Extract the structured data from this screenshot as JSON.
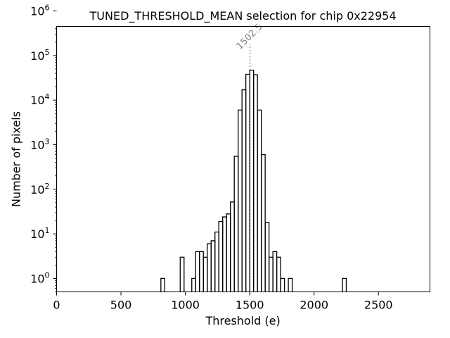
{
  "chart_data": {
    "type": "histogram",
    "title": "TUNED_THRESHOLD_MEAN selection for chip 0x22954",
    "xlabel": "Threshold (e)",
    "ylabel": "Number of pixels",
    "xlim": [
      0,
      2900
    ],
    "ylim": [
      0.5,
      450000
    ],
    "yscale": "log",
    "x_ticks": [
      0,
      500,
      1000,
      1500,
      2000,
      2500
    ],
    "x_tick_labels": [
      "0",
      "500",
      "1000",
      "1500",
      "2000",
      "2500"
    ],
    "y_ticks": [
      1,
      10,
      100,
      1000,
      10000,
      100000,
      1000000
    ],
    "y_tick_base": "10",
    "y_tick_exponents": [
      "0",
      "1",
      "2",
      "3",
      "4",
      "5",
      "6"
    ],
    "grid": false,
    "bins": [
      {
        "x0": 810,
        "x1": 840,
        "count": 1
      },
      {
        "x0": 960,
        "x1": 990,
        "count": 3
      },
      {
        "x0": 1050,
        "x1": 1080,
        "count": 1
      },
      {
        "x0": 1080,
        "x1": 1110,
        "count": 4
      },
      {
        "x0": 1110,
        "x1": 1140,
        "count": 4
      },
      {
        "x0": 1140,
        "x1": 1170,
        "count": 3
      },
      {
        "x0": 1170,
        "x1": 1200,
        "count": 6
      },
      {
        "x0": 1200,
        "x1": 1230,
        "count": 7
      },
      {
        "x0": 1230,
        "x1": 1260,
        "count": 11
      },
      {
        "x0": 1260,
        "x1": 1290,
        "count": 19
      },
      {
        "x0": 1290,
        "x1": 1320,
        "count": 24
      },
      {
        "x0": 1320,
        "x1": 1350,
        "count": 28
      },
      {
        "x0": 1350,
        "x1": 1380,
        "count": 52
      },
      {
        "x0": 1380,
        "x1": 1410,
        "count": 550
      },
      {
        "x0": 1410,
        "x1": 1440,
        "count": 6000
      },
      {
        "x0": 1440,
        "x1": 1470,
        "count": 17000
      },
      {
        "x0": 1470,
        "x1": 1500,
        "count": 38000
      },
      {
        "x0": 1500,
        "x1": 1530,
        "count": 47000
      },
      {
        "x0": 1530,
        "x1": 1560,
        "count": 37000
      },
      {
        "x0": 1560,
        "x1": 1590,
        "count": 6000
      },
      {
        "x0": 1590,
        "x1": 1620,
        "count": 600
      },
      {
        "x0": 1620,
        "x1": 1650,
        "count": 18
      },
      {
        "x0": 1650,
        "x1": 1680,
        "count": 3
      },
      {
        "x0": 1680,
        "x1": 1710,
        "count": 4
      },
      {
        "x0": 1710,
        "x1": 1740,
        "count": 3
      },
      {
        "x0": 1740,
        "x1": 1770,
        "count": 1
      },
      {
        "x0": 1800,
        "x1": 1830,
        "count": 1
      },
      {
        "x0": 2220,
        "x1": 2250,
        "count": 1
      }
    ],
    "line_color": "#000000",
    "marker": {
      "x": 1502.5,
      "label": "1502.5",
      "y_top": 180000,
      "color": "#808080",
      "style": "dotted"
    }
  }
}
